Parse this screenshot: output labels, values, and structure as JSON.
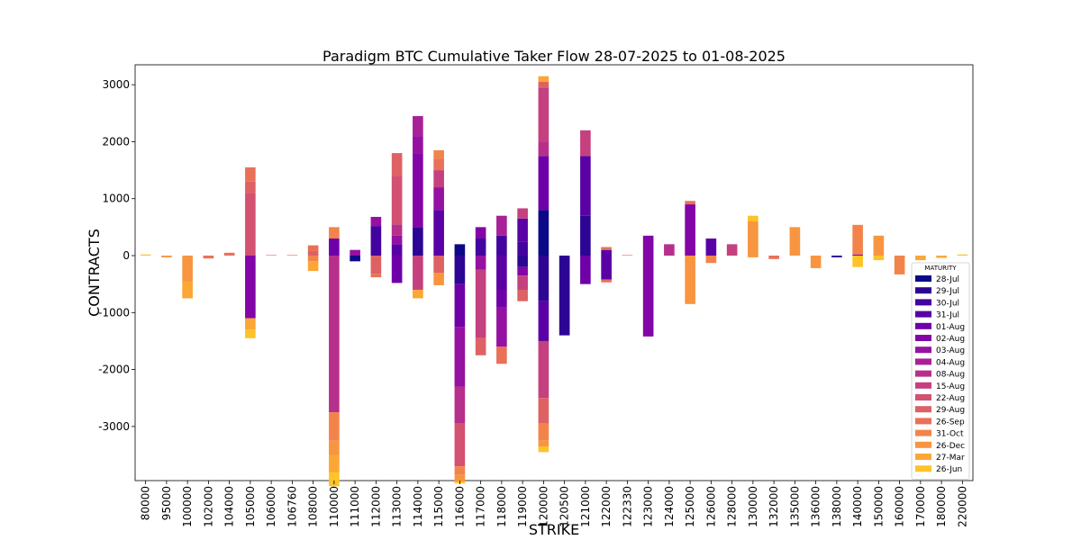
{
  "chart_data": {
    "type": "bar",
    "stacked": true,
    "title": "Paradigm BTC Cumulative Taker Flow 28-07-2025 to 01-08-2025",
    "xlabel": "STRIKE",
    "ylabel": "CONTRACTS",
    "ylim": [
      -3950,
      3350
    ],
    "yticks": [
      -3000,
      -2000,
      -1000,
      0,
      1000,
      2000,
      3000
    ],
    "grid": false,
    "legend_title": "MATURITY",
    "legend_position": "lower-right",
    "categories": [
      "80000",
      "95000",
      "100000",
      "102000",
      "104000",
      "105000",
      "106000",
      "106760",
      "108000",
      "110000",
      "111000",
      "112000",
      "113000",
      "114000",
      "115000",
      "116000",
      "117000",
      "118000",
      "119000",
      "120000",
      "120500",
      "121000",
      "122000",
      "122330",
      "123000",
      "124000",
      "125000",
      "126000",
      "128000",
      "130000",
      "132000",
      "135000",
      "136000",
      "138000",
      "140000",
      "150000",
      "160000",
      "170000",
      "180000",
      "220000"
    ],
    "maturities": [
      {
        "name": "28-Jul",
        "color": "#0d0887"
      },
      {
        "name": "29-Jul",
        "color": "#2c0594"
      },
      {
        "name": "30-Jul",
        "color": "#43039e"
      },
      {
        "name": "31-Jul",
        "color": "#5901a5"
      },
      {
        "name": "01-Aug",
        "color": "#6e00a8"
      },
      {
        "name": "02-Aug",
        "color": "#8305a7"
      },
      {
        "name": "03-Aug",
        "color": "#9511a1"
      },
      {
        "name": "04-Aug",
        "color": "#a72197"
      },
      {
        "name": "08-Aug",
        "color": "#b6308b"
      },
      {
        "name": "15-Aug",
        "color": "#c5407e"
      },
      {
        "name": "22-Aug",
        "color": "#d35171"
      },
      {
        "name": "29-Aug",
        "color": "#de6164"
      },
      {
        "name": "26-Sep",
        "color": "#e97158"
      },
      {
        "name": "31-Oct",
        "color": "#f2844b"
      },
      {
        "name": "26-Dec",
        "color": "#f89540"
      },
      {
        "name": "27-Mar",
        "color": "#fca636"
      },
      {
        "name": "26-Jun",
        "color": "#fdc328"
      }
    ],
    "segments": [
      [
        [
          16,
          20
        ]
      ],
      [
        [
          14,
          -30
        ]
      ],
      [
        [
          14,
          -450
        ],
        [
          15,
          -300
        ]
      ],
      [
        [
          12,
          -50
        ]
      ],
      [
        [
          12,
          50
        ]
      ],
      [
        [
          10,
          1100
        ],
        [
          11,
          200
        ],
        [
          12,
          250
        ],
        [
          5,
          -1100
        ],
        [
          15,
          -200
        ],
        [
          16,
          -150
        ]
      ],
      [
        [
          12,
          10
        ]
      ],
      [
        [
          12,
          10
        ]
      ],
      [
        [
          11,
          80
        ],
        [
          12,
          100
        ],
        [
          13,
          -100
        ],
        [
          15,
          -170
        ]
      ],
      [
        [
          4,
          300
        ],
        [
          13,
          200
        ],
        [
          8,
          -2750
        ],
        [
          13,
          -500
        ],
        [
          14,
          -250
        ],
        [
          15,
          -300
        ],
        [
          16,
          -250
        ]
      ],
      [
        [
          6,
          100
        ],
        [
          0,
          -100
        ]
      ],
      [
        [
          2,
          520
        ],
        [
          6,
          160
        ],
        [
          11,
          -320
        ],
        [
          12,
          -60
        ]
      ],
      [
        [
          3,
          200
        ],
        [
          6,
          150
        ],
        [
          8,
          200
        ],
        [
          10,
          850
        ],
        [
          11,
          400
        ],
        [
          4,
          -480
        ]
      ],
      [
        [
          1,
          500
        ],
        [
          5,
          1300
        ],
        [
          6,
          300
        ],
        [
          7,
          350
        ],
        [
          9,
          -600
        ],
        [
          15,
          -150
        ]
      ],
      [
        [
          3,
          800
        ],
        [
          6,
          400
        ],
        [
          9,
          300
        ],
        [
          12,
          200
        ],
        [
          13,
          150
        ],
        [
          11,
          -300
        ],
        [
          14,
          -220
        ]
      ],
      [
        [
          0,
          200
        ],
        [
          1,
          -500
        ],
        [
          4,
          -750
        ],
        [
          6,
          -1050
        ],
        [
          8,
          -650
        ],
        [
          10,
          -750
        ],
        [
          13,
          -150
        ],
        [
          14,
          -120
        ],
        [
          16,
          -30
        ]
      ],
      [
        [
          2,
          300
        ],
        [
          5,
          200
        ],
        [
          6,
          -250
        ],
        [
          9,
          -1200
        ],
        [
          11,
          -300
        ]
      ],
      [
        [
          2,
          350
        ],
        [
          7,
          350
        ],
        [
          3,
          -600
        ],
        [
          4,
          -300
        ],
        [
          6,
          -700
        ],
        [
          12,
          -300
        ]
      ],
      [
        [
          2,
          250
        ],
        [
          3,
          400
        ],
        [
          9,
          180
        ],
        [
          1,
          -200
        ],
        [
          5,
          -150
        ],
        [
          9,
          -250
        ],
        [
          11,
          -200
        ]
      ],
      [
        [
          0,
          800
        ],
        [
          4,
          950
        ],
        [
          8,
          250
        ],
        [
          9,
          950
        ],
        [
          11,
          100
        ],
        [
          15,
          100
        ],
        [
          1,
          -800
        ],
        [
          3,
          -700
        ],
        [
          9,
          -1000
        ],
        [
          11,
          -450
        ],
        [
          13,
          -300
        ],
        [
          14,
          -100
        ],
        [
          16,
          -100
        ]
      ],
      [
        [
          1,
          -1400
        ]
      ],
      [
        [
          1,
          700
        ],
        [
          3,
          1050
        ],
        [
          9,
          450
        ],
        [
          4,
          -500
        ]
      ],
      [
        [
          3,
          100
        ],
        [
          12,
          50
        ],
        [
          3,
          -420
        ],
        [
          12,
          -50
        ]
      ],
      [
        [
          12,
          10
        ]
      ],
      [
        [
          5,
          350
        ],
        [
          5,
          -1420
        ]
      ],
      [
        [
          8,
          200
        ]
      ],
      [
        [
          5,
          900
        ],
        [
          12,
          60
        ],
        [
          14,
          -850
        ]
      ],
      [
        [
          3,
          300
        ],
        [
          13,
          -130
        ]
      ],
      [
        [
          9,
          200
        ]
      ],
      [
        [
          14,
          600
        ],
        [
          16,
          100
        ],
        [
          14,
          -30
        ]
      ],
      [
        [
          12,
          -60
        ]
      ],
      [
        [
          14,
          500
        ]
      ],
      [
        [
          14,
          -220
        ]
      ],
      [
        [
          1,
          -30
        ]
      ],
      [
        [
          5,
          20
        ],
        [
          13,
          520
        ],
        [
          16,
          -200
        ]
      ],
      [
        [
          14,
          350
        ],
        [
          16,
          -80
        ]
      ],
      [
        [
          13,
          -330
        ]
      ],
      [
        [
          15,
          -80
        ]
      ],
      [
        [
          15,
          -40
        ]
      ],
      [
        [
          16,
          20
        ]
      ]
    ]
  }
}
